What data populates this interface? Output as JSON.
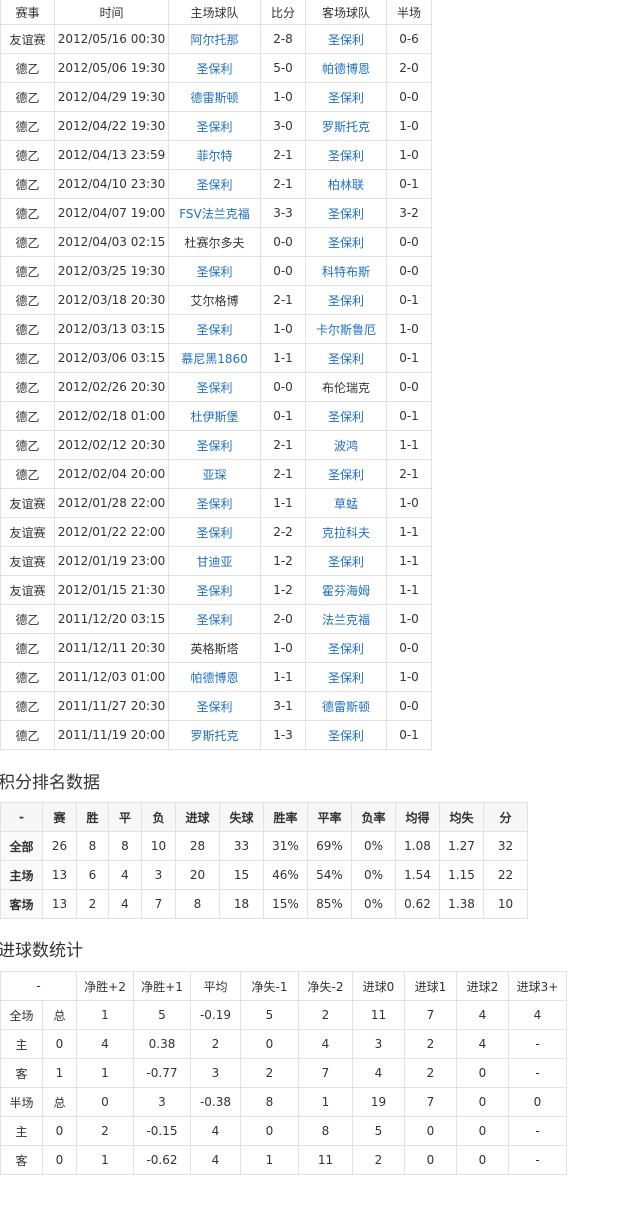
{
  "matches": {
    "headers": [
      "赛事",
      "时间",
      "主场球队",
      "比分",
      "客场球队",
      "半场"
    ],
    "link_color": "#1f6fc5",
    "rows": [
      {
        "comp": "友谊赛",
        "time": "2012/05/16 00:30",
        "home": "阿尔托那",
        "home_link": true,
        "score": "2-8",
        "away": "圣保利",
        "away_link": true,
        "half": "0-6"
      },
      {
        "comp": "德乙",
        "time": "2012/05/06 19:30",
        "home": "圣保利",
        "home_link": true,
        "score": "5-0",
        "away": "帕德博恩",
        "away_link": true,
        "half": "2-0"
      },
      {
        "comp": "德乙",
        "time": "2012/04/29 19:30",
        "home": "德雷斯顿",
        "home_link": true,
        "score": "1-0",
        "away": "圣保利",
        "away_link": true,
        "half": "0-0"
      },
      {
        "comp": "德乙",
        "time": "2012/04/22 19:30",
        "home": "圣保利",
        "home_link": true,
        "score": "3-0",
        "away": "罗斯托克",
        "away_link": true,
        "half": "1-0"
      },
      {
        "comp": "德乙",
        "time": "2012/04/13 23:59",
        "home": "菲尔特",
        "home_link": true,
        "score": "2-1",
        "away": "圣保利",
        "away_link": true,
        "half": "1-0"
      },
      {
        "comp": "德乙",
        "time": "2012/04/10 23:30",
        "home": "圣保利",
        "home_link": true,
        "score": "2-1",
        "away": "柏林联",
        "away_link": true,
        "half": "0-1"
      },
      {
        "comp": "德乙",
        "time": "2012/04/07 19:00",
        "home": "FSV法兰克福",
        "home_link": true,
        "score": "3-3",
        "away": "圣保利",
        "away_link": true,
        "half": "3-2"
      },
      {
        "comp": "德乙",
        "time": "2012/04/03 02:15",
        "home": "杜赛尔多夫",
        "home_link": false,
        "score": "0-0",
        "away": "圣保利",
        "away_link": true,
        "half": "0-0"
      },
      {
        "comp": "德乙",
        "time": "2012/03/25 19:30",
        "home": "圣保利",
        "home_link": true,
        "score": "0-0",
        "away": "科特布斯",
        "away_link": true,
        "half": "0-0"
      },
      {
        "comp": "德乙",
        "time": "2012/03/18 20:30",
        "home": "艾尔格博",
        "home_link": false,
        "score": "2-1",
        "away": "圣保利",
        "away_link": true,
        "half": "0-1"
      },
      {
        "comp": "德乙",
        "time": "2012/03/13 03:15",
        "home": "圣保利",
        "home_link": true,
        "score": "1-0",
        "away": "卡尔斯鲁厄",
        "away_link": true,
        "half": "1-0"
      },
      {
        "comp": "德乙",
        "time": "2012/03/06 03:15",
        "home": "慕尼黑1860",
        "home_link": true,
        "score": "1-1",
        "away": "圣保利",
        "away_link": true,
        "half": "0-1"
      },
      {
        "comp": "德乙",
        "time": "2012/02/26 20:30",
        "home": "圣保利",
        "home_link": true,
        "score": "0-0",
        "away": "布伦瑞克",
        "away_link": false,
        "half": "0-0"
      },
      {
        "comp": "德乙",
        "time": "2012/02/18 01:00",
        "home": "杜伊斯堡",
        "home_link": true,
        "score": "0-1",
        "away": "圣保利",
        "away_link": true,
        "half": "0-1"
      },
      {
        "comp": "德乙",
        "time": "2012/02/12 20:30",
        "home": "圣保利",
        "home_link": true,
        "score": "2-1",
        "away": "波鸿",
        "away_link": true,
        "half": "1-1"
      },
      {
        "comp": "德乙",
        "time": "2012/02/04 20:00",
        "home": "亚琛",
        "home_link": true,
        "score": "2-1",
        "away": "圣保利",
        "away_link": true,
        "half": "2-1"
      },
      {
        "comp": "友谊赛",
        "time": "2012/01/28 22:00",
        "home": "圣保利",
        "home_link": true,
        "score": "1-1",
        "away": "草蜢",
        "away_link": true,
        "half": "1-0"
      },
      {
        "comp": "友谊赛",
        "time": "2012/01/22 22:00",
        "home": "圣保利",
        "home_link": true,
        "score": "2-2",
        "away": "克拉科夫",
        "away_link": true,
        "half": "1-1"
      },
      {
        "comp": "友谊赛",
        "time": "2012/01/19 23:00",
        "home": "甘迪亚",
        "home_link": true,
        "score": "1-2",
        "away": "圣保利",
        "away_link": true,
        "half": "1-1"
      },
      {
        "comp": "友谊赛",
        "time": "2012/01/15 21:30",
        "home": "圣保利",
        "home_link": true,
        "score": "1-2",
        "away": "霍芬海姆",
        "away_link": true,
        "half": "1-1"
      },
      {
        "comp": "德乙",
        "time": "2011/12/20 03:15",
        "home": "圣保利",
        "home_link": true,
        "score": "2-0",
        "away": "法兰克福",
        "away_link": true,
        "half": "1-0"
      },
      {
        "comp": "德乙",
        "time": "2011/12/11 20:30",
        "home": "英格斯塔",
        "home_link": false,
        "score": "1-0",
        "away": "圣保利",
        "away_link": true,
        "half": "0-0"
      },
      {
        "comp": "德乙",
        "time": "2011/12/03 01:00",
        "home": "帕德博恩",
        "home_link": true,
        "score": "1-1",
        "away": "圣保利",
        "away_link": true,
        "half": "1-0"
      },
      {
        "comp": "德乙",
        "time": "2011/11/27 20:30",
        "home": "圣保利",
        "home_link": true,
        "score": "3-1",
        "away": "德雷斯顿",
        "away_link": true,
        "half": "0-0"
      },
      {
        "comp": "德乙",
        "time": "2011/11/19 20:00",
        "home": "罗斯托克",
        "home_link": true,
        "score": "1-3",
        "away": "圣保利",
        "away_link": true,
        "half": "0-1"
      }
    ]
  },
  "standings": {
    "title": "积分排名数据",
    "headers": [
      "-",
      "赛",
      "胜",
      "平",
      "负",
      "进球",
      "失球",
      "胜率",
      "平率",
      "负率",
      "均得",
      "均失",
      "分"
    ],
    "rows": [
      [
        "全部",
        "26",
        "8",
        "8",
        "10",
        "28",
        "33",
        "31%",
        "69%",
        "0%",
        "1.08",
        "1.27",
        "32"
      ],
      [
        "主场",
        "13",
        "6",
        "4",
        "3",
        "20",
        "15",
        "46%",
        "54%",
        "0%",
        "1.54",
        "1.15",
        "22"
      ],
      [
        "客场",
        "13",
        "2",
        "4",
        "7",
        "8",
        "18",
        "15%",
        "85%",
        "0%",
        "0.62",
        "1.38",
        "10"
      ]
    ]
  },
  "goals": {
    "title": "进球数统计",
    "headers": [
      "-",
      "净胜+2",
      "净胜+1",
      "平均",
      "净失-1",
      "净失-2",
      "进球0",
      "进球1",
      "进球2",
      "进球3+"
    ],
    "rows": [
      [
        "全场",
        "总",
        "1",
        "5",
        "-0.19",
        "5",
        "2",
        "11",
        "7",
        "4",
        "4"
      ],
      [
        "主",
        "0",
        "4",
        "0.38",
        "2",
        "0",
        "4",
        "3",
        "2",
        "4",
        "-"
      ],
      [
        "客",
        "1",
        "1",
        "-0.77",
        "3",
        "2",
        "7",
        "4",
        "2",
        "0",
        "-"
      ],
      [
        "半场",
        "总",
        "0",
        "3",
        "-0.38",
        "8",
        "1",
        "19",
        "7",
        "0",
        "0"
      ],
      [
        "主",
        "0",
        "2",
        "-0.15",
        "4",
        "0",
        "8",
        "5",
        "0",
        "0",
        "-"
      ],
      [
        "客",
        "0",
        "1",
        "-0.62",
        "4",
        "1",
        "11",
        "2",
        "0",
        "0",
        "-"
      ]
    ]
  }
}
